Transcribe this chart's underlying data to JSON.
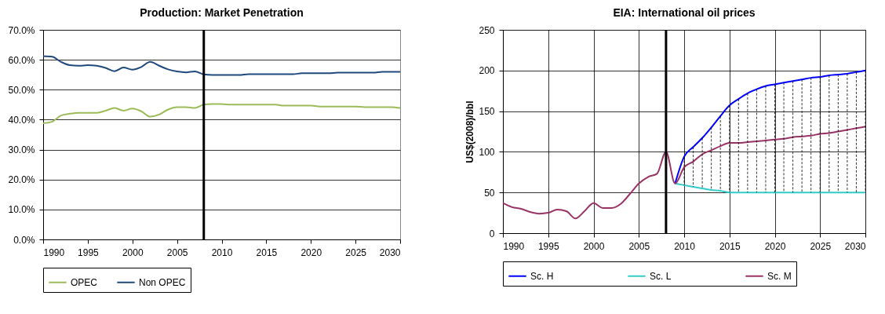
{
  "chart_data": [
    {
      "type": "line",
      "title": "Production: Market Penetration",
      "x": [
        1990,
        1991,
        1992,
        1993,
        1994,
        1995,
        1996,
        1997,
        1998,
        1999,
        2000,
        2001,
        2002,
        2003,
        2004,
        2005,
        2006,
        2007,
        2008,
        2009,
        2010,
        2011,
        2012,
        2013,
        2014,
        2015,
        2016,
        2017,
        2018,
        2019,
        2020,
        2021,
        2022,
        2023,
        2024,
        2025,
        2026,
        2027,
        2028,
        2029,
        2030
      ],
      "series": [
        {
          "name": "OPEC",
          "color": "#9bbb59",
          "values": [
            38.8,
            39.3,
            41.4,
            42.0,
            42.3,
            42.3,
            42.3,
            43.0,
            43.9,
            43.0,
            43.7,
            42.8,
            41.0,
            41.7,
            43.4,
            44.2,
            44.2,
            43.9,
            45.0,
            45.2,
            45.2,
            45.0,
            45.0,
            45.0,
            45.0,
            45.0,
            45.0,
            44.7,
            44.7,
            44.7,
            44.7,
            44.4,
            44.4,
            44.4,
            44.4,
            44.4,
            44.2,
            44.2,
            44.2,
            44.2,
            43.9
          ]
        },
        {
          "name": "Non OPEC",
          "color": "#1f497d",
          "values": [
            61.2,
            61.0,
            59.3,
            58.2,
            58.0,
            58.2,
            58.0,
            57.3,
            56.2,
            57.4,
            56.7,
            57.6,
            59.3,
            58.0,
            56.8,
            56.1,
            55.8,
            56.1,
            55.1,
            54.9,
            54.9,
            54.9,
            54.9,
            55.2,
            55.2,
            55.2,
            55.2,
            55.2,
            55.2,
            55.5,
            55.5,
            55.5,
            55.5,
            55.7,
            55.7,
            55.7,
            55.7,
            55.7,
            56.0,
            56.0,
            56.0
          ]
        }
      ],
      "xlim": [
        1990,
        2030
      ],
      "xticks": [
        1990,
        1995,
        2000,
        2005,
        2010,
        2015,
        2020,
        2025,
        2030
      ],
      "ylim": [
        0,
        70
      ],
      "yticks": [
        {
          "value": 0,
          "label": "0.0%"
        },
        {
          "value": 10,
          "label": "10.0%"
        },
        {
          "value": 20,
          "label": "20.0%"
        },
        {
          "value": 30,
          "label": "30.0%"
        },
        {
          "value": 40,
          "label": "40.0%"
        },
        {
          "value": 50,
          "label": "50.0%"
        },
        {
          "value": 60,
          "label": "60.0%"
        },
        {
          "value": 70,
          "label": "70.0%"
        }
      ],
      "grid": "y",
      "legend": "bottom",
      "ref_lines": [
        {
          "axis": "x",
          "value": 2008,
          "color": "#000000"
        }
      ]
    },
    {
      "type": "line",
      "title": "EIA: International oil prices",
      "ylabel": "US$(2008)/bbl",
      "series": [
        {
          "name": "Sc. H",
          "color": "#0000ff",
          "x": [
            2009,
            2010,
            2011,
            2012,
            2013,
            2014,
            2015,
            2016,
            2017,
            2018,
            2019,
            2020,
            2021,
            2022,
            2023,
            2024,
            2025,
            2026,
            2027,
            2028,
            2029,
            2030
          ],
          "values": [
            61,
            94,
            106,
            117,
            130,
            144,
            157,
            165,
            172,
            177,
            181,
            183,
            185,
            187,
            189,
            191,
            192,
            194,
            195,
            196,
            198,
            200
          ]
        },
        {
          "name": "Sc. L",
          "color": "#33cccc",
          "x": [
            2009,
            2010,
            2011,
            2012,
            2013,
            2014,
            2015,
            2016,
            2017,
            2018,
            2019,
            2020,
            2021,
            2022,
            2023,
            2024,
            2025,
            2026,
            2027,
            2028,
            2029,
            2030
          ],
          "values": [
            61,
            59,
            57,
            55,
            53,
            52,
            50,
            50,
            50,
            50,
            50,
            50,
            50,
            50,
            50,
            50,
            50,
            50,
            50,
            50,
            50,
            50
          ]
        },
        {
          "name": "Sc. M",
          "color": "#993366",
          "x": [
            1990,
            1991,
            1992,
            1993,
            1994,
            1995,
            1996,
            1997,
            1998,
            1999,
            2000,
            2001,
            2002,
            2003,
            2004,
            2005,
            2006,
            2007,
            2008,
            2009,
            2010,
            2011,
            2012,
            2013,
            2014,
            2015,
            2016,
            2017,
            2018,
            2019,
            2020,
            2021,
            2022,
            2023,
            2024,
            2025,
            2026,
            2027,
            2028,
            2029,
            2030
          ],
          "values": [
            37,
            32,
            30,
            26,
            24,
            25,
            29,
            27,
            18,
            27,
            37,
            31,
            31,
            36,
            48,
            61,
            69,
            73,
            100,
            61,
            81,
            88,
            97,
            102,
            107,
            111,
            111,
            112,
            113,
            114,
            115,
            116,
            118,
            119,
            120,
            122,
            123,
            125,
            127,
            129,
            131
          ]
        }
      ],
      "xlim": [
        1990,
        2030
      ],
      "xticks": [
        1990,
        1995,
        2000,
        2005,
        2010,
        2015,
        2020,
        2025,
        2030
      ],
      "ylim": [
        0,
        250
      ],
      "yticks": [
        0,
        50,
        100,
        150,
        200,
        250
      ],
      "grid": true,
      "legend": "bottom",
      "ref_lines": [
        {
          "axis": "x",
          "value": 2008,
          "color": "#000000"
        }
      ]
    }
  ]
}
